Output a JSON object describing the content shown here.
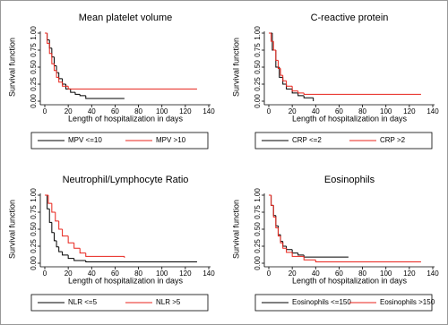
{
  "chart_data": [
    {
      "type": "line",
      "step": true,
      "title": "Mean platelet volume",
      "xlabel": "Length of hospitalization in days",
      "ylabel": "Survival function",
      "xlim": [
        0,
        140
      ],
      "xticks": [
        0,
        20,
        40,
        60,
        80,
        100,
        120,
        140
      ],
      "ylim": [
        0,
        1
      ],
      "yticks": [
        {
          "value": 0,
          "label": "0.00"
        },
        {
          "value": 0.25,
          "label": "0.25"
        },
        {
          "value": 0.5,
          "label": "0.50"
        },
        {
          "value": 0.75,
          "label": "0.75"
        },
        {
          "value": 1,
          "label": "1.00"
        }
      ],
      "series": [
        {
          "name": "MPV <=10",
          "color": "#000000",
          "x": [
            0,
            2,
            4,
            6,
            8,
            10,
            12,
            15,
            18,
            22,
            26,
            30,
            35,
            68
          ],
          "values": [
            1,
            0.9,
            0.78,
            0.65,
            0.52,
            0.42,
            0.33,
            0.25,
            0.18,
            0.13,
            0.1,
            0.08,
            0.04,
            0.04
          ]
        },
        {
          "name": "MPV >10",
          "color": "#e8231b",
          "x": [
            0,
            2,
            4,
            6,
            8,
            10,
            12,
            15,
            20,
            130
          ],
          "values": [
            1,
            0.85,
            0.7,
            0.55,
            0.45,
            0.35,
            0.28,
            0.22,
            0.18,
            0.18
          ]
        }
      ]
    },
    {
      "type": "line",
      "step": true,
      "title": "C-reactive protein",
      "xlabel": "Length of hospitalization in days",
      "ylabel": "Survival function",
      "xlim": [
        0,
        140
      ],
      "xticks": [
        0,
        20,
        40,
        60,
        80,
        100,
        120,
        140
      ],
      "ylim": [
        0,
        1
      ],
      "yticks": [
        {
          "value": 0,
          "label": "0.00"
        },
        {
          "value": 0.25,
          "label": "0.25"
        },
        {
          "value": 0.5,
          "label": "0.50"
        },
        {
          "value": 0.75,
          "label": "0.75"
        },
        {
          "value": 1,
          "label": "1.00"
        }
      ],
      "series": [
        {
          "name": "CRP <=2",
          "color": "#000000",
          "x": [
            0,
            3,
            6,
            9,
            12,
            15,
            20,
            25,
            30,
            38
          ],
          "values": [
            1,
            0.75,
            0.5,
            0.35,
            0.25,
            0.18,
            0.12,
            0.08,
            0.05,
            0
          ]
        },
        {
          "name": "CRP >2",
          "color": "#e8231b",
          "x": [
            0,
            2,
            4,
            6,
            8,
            10,
            12,
            15,
            20,
            25,
            30,
            130
          ],
          "values": [
            1,
            0.88,
            0.75,
            0.6,
            0.48,
            0.38,
            0.3,
            0.22,
            0.15,
            0.12,
            0.1,
            0.1
          ]
        }
      ]
    },
    {
      "type": "line",
      "step": true,
      "title": "Neutrophil/Lymphocyte Ratio",
      "xlabel": "Length of hospitalization in days",
      "ylabel": "Survival function",
      "xlim": [
        0,
        140
      ],
      "xticks": [
        0,
        20,
        40,
        60,
        80,
        100,
        120,
        140
      ],
      "ylim": [
        0,
        1
      ],
      "yticks": [
        {
          "value": 0,
          "label": "0.00"
        },
        {
          "value": 0.25,
          "label": "0.25"
        },
        {
          "value": 0.5,
          "label": "0.50"
        },
        {
          "value": 0.75,
          "label": "0.75"
        },
        {
          "value": 1,
          "label": "1.00"
        }
      ],
      "series": [
        {
          "name": "NLR <=5",
          "color": "#000000",
          "x": [
            0,
            2,
            4,
            6,
            8,
            10,
            12,
            15,
            20,
            25,
            35,
            130
          ],
          "values": [
            1,
            0.8,
            0.6,
            0.45,
            0.33,
            0.24,
            0.17,
            0.12,
            0.07,
            0.04,
            0.02,
            0.02
          ]
        },
        {
          "name": "NLR >5",
          "color": "#e8231b",
          "x": [
            0,
            3,
            6,
            9,
            12,
            15,
            20,
            25,
            30,
            35,
            68
          ],
          "values": [
            1,
            0.88,
            0.75,
            0.62,
            0.5,
            0.4,
            0.3,
            0.22,
            0.15,
            0.1,
            0.08
          ]
        }
      ]
    },
    {
      "type": "line",
      "step": true,
      "title": "Eosinophils",
      "xlabel": "Length of hospitalization in days",
      "ylabel": "Survival function",
      "xlim": [
        0,
        140
      ],
      "xticks": [
        0,
        20,
        40,
        60,
        80,
        100,
        120,
        140
      ],
      "ylim": [
        0,
        1
      ],
      "yticks": [
        {
          "value": 0,
          "label": "0.00"
        },
        {
          "value": 0.25,
          "label": "0.25"
        },
        {
          "value": 0.5,
          "label": "0.50"
        },
        {
          "value": 0.75,
          "label": "0.75"
        },
        {
          "value": 1,
          "label": "1.00"
        }
      ],
      "series": [
        {
          "name": "Eosinophils <=150",
          "color": "#000000",
          "x": [
            0,
            2,
            4,
            6,
            8,
            10,
            12,
            15,
            20,
            25,
            30,
            68
          ],
          "values": [
            1,
            0.85,
            0.7,
            0.55,
            0.42,
            0.32,
            0.25,
            0.2,
            0.15,
            0.12,
            0.09,
            0.09
          ]
        },
        {
          "name": "Eosinophils >150",
          "color": "#e8231b",
          "x": [
            0,
            2,
            4,
            6,
            8,
            10,
            12,
            15,
            20,
            30,
            40,
            130
          ],
          "values": [
            1,
            0.85,
            0.68,
            0.52,
            0.4,
            0.3,
            0.22,
            0.16,
            0.1,
            0.05,
            0.02,
            0.02
          ]
        }
      ]
    }
  ]
}
